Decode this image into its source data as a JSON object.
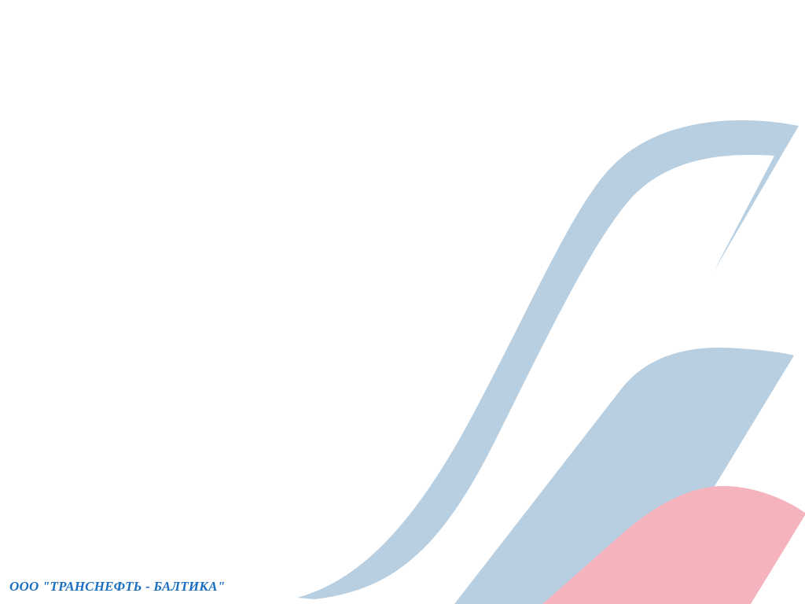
{
  "footer": {
    "company_name": "ООО \"ТРАНСНЕФТЬ - БАЛТИКА\""
  },
  "colors": {
    "background": "#ffffff",
    "stripe_blue": "#b8cfe1",
    "stripe_pink": "#f5b4bd",
    "text_blue": "#1a6fc0"
  }
}
